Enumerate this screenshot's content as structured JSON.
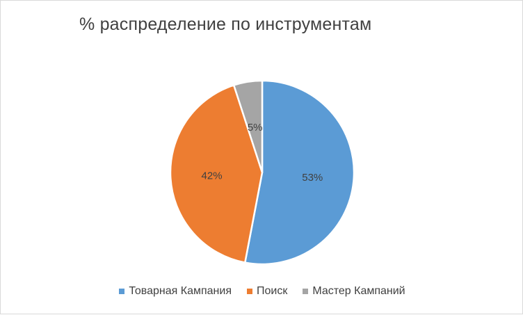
{
  "chart_data": {
    "type": "pie",
    "title": "% распределение по инструментам",
    "categories": [
      "Товарная Кампания",
      "Поиск",
      "Мастер Кампаний"
    ],
    "values": [
      53,
      42,
      5
    ],
    "data_labels": [
      "53%",
      "42%",
      "5%"
    ],
    "colors": [
      "#5b9bd5",
      "#ed7d31",
      "#a5a5a5"
    ],
    "legend_position": "bottom",
    "start_angle": "12 o'clock, clockwise"
  }
}
